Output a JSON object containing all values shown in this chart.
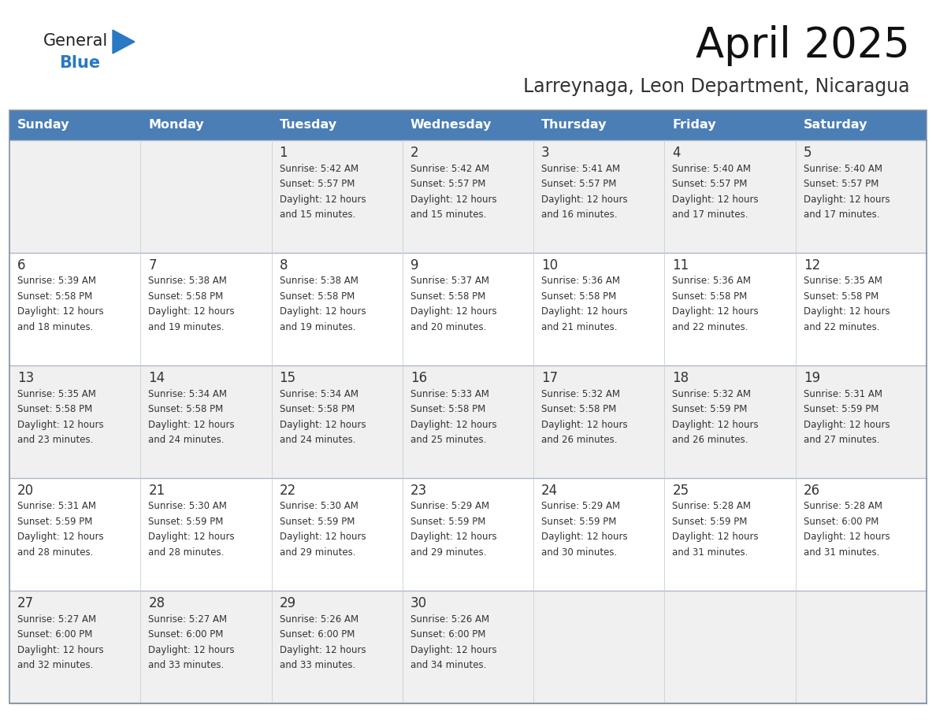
{
  "title": "April 2025",
  "subtitle": "Larreynaga, Leon Department, Nicaragua",
  "days_of_week": [
    "Sunday",
    "Monday",
    "Tuesday",
    "Wednesday",
    "Thursday",
    "Friday",
    "Saturday"
  ],
  "header_bg": "#4a7eb5",
  "header_text": "#ffffff",
  "row_bg_light": "#f0f0f0",
  "row_bg_white": "#ffffff",
  "text_color": "#333333",
  "title_color": "#111111",
  "subtitle_color": "#333333",
  "logo_general_color": "#222222",
  "logo_blue_color": "#2979c4",
  "calendar_data": [
    [
      null,
      null,
      {
        "day": 1,
        "sunrise": "5:42 AM",
        "sunset": "5:57 PM",
        "daylight": "12 hours and 15 minutes."
      },
      {
        "day": 2,
        "sunrise": "5:42 AM",
        "sunset": "5:57 PM",
        "daylight": "12 hours and 15 minutes."
      },
      {
        "day": 3,
        "sunrise": "5:41 AM",
        "sunset": "5:57 PM",
        "daylight": "12 hours and 16 minutes."
      },
      {
        "day": 4,
        "sunrise": "5:40 AM",
        "sunset": "5:57 PM",
        "daylight": "12 hours and 17 minutes."
      },
      {
        "day": 5,
        "sunrise": "5:40 AM",
        "sunset": "5:57 PM",
        "daylight": "12 hours and 17 minutes."
      }
    ],
    [
      {
        "day": 6,
        "sunrise": "5:39 AM",
        "sunset": "5:58 PM",
        "daylight": "12 hours and 18 minutes."
      },
      {
        "day": 7,
        "sunrise": "5:38 AM",
        "sunset": "5:58 PM",
        "daylight": "12 hours and 19 minutes."
      },
      {
        "day": 8,
        "sunrise": "5:38 AM",
        "sunset": "5:58 PM",
        "daylight": "12 hours and 19 minutes."
      },
      {
        "day": 9,
        "sunrise": "5:37 AM",
        "sunset": "5:58 PM",
        "daylight": "12 hours and 20 minutes."
      },
      {
        "day": 10,
        "sunrise": "5:36 AM",
        "sunset": "5:58 PM",
        "daylight": "12 hours and 21 minutes."
      },
      {
        "day": 11,
        "sunrise": "5:36 AM",
        "sunset": "5:58 PM",
        "daylight": "12 hours and 22 minutes."
      },
      {
        "day": 12,
        "sunrise": "5:35 AM",
        "sunset": "5:58 PM",
        "daylight": "12 hours and 22 minutes."
      }
    ],
    [
      {
        "day": 13,
        "sunrise": "5:35 AM",
        "sunset": "5:58 PM",
        "daylight": "12 hours and 23 minutes."
      },
      {
        "day": 14,
        "sunrise": "5:34 AM",
        "sunset": "5:58 PM",
        "daylight": "12 hours and 24 minutes."
      },
      {
        "day": 15,
        "sunrise": "5:34 AM",
        "sunset": "5:58 PM",
        "daylight": "12 hours and 24 minutes."
      },
      {
        "day": 16,
        "sunrise": "5:33 AM",
        "sunset": "5:58 PM",
        "daylight": "12 hours and 25 minutes."
      },
      {
        "day": 17,
        "sunrise": "5:32 AM",
        "sunset": "5:58 PM",
        "daylight": "12 hours and 26 minutes."
      },
      {
        "day": 18,
        "sunrise": "5:32 AM",
        "sunset": "5:59 PM",
        "daylight": "12 hours and 26 minutes."
      },
      {
        "day": 19,
        "sunrise": "5:31 AM",
        "sunset": "5:59 PM",
        "daylight": "12 hours and 27 minutes."
      }
    ],
    [
      {
        "day": 20,
        "sunrise": "5:31 AM",
        "sunset": "5:59 PM",
        "daylight": "12 hours and 28 minutes."
      },
      {
        "day": 21,
        "sunrise": "5:30 AM",
        "sunset": "5:59 PM",
        "daylight": "12 hours and 28 minutes."
      },
      {
        "day": 22,
        "sunrise": "5:30 AM",
        "sunset": "5:59 PM",
        "daylight": "12 hours and 29 minutes."
      },
      {
        "day": 23,
        "sunrise": "5:29 AM",
        "sunset": "5:59 PM",
        "daylight": "12 hours and 29 minutes."
      },
      {
        "day": 24,
        "sunrise": "5:29 AM",
        "sunset": "5:59 PM",
        "daylight": "12 hours and 30 minutes."
      },
      {
        "day": 25,
        "sunrise": "5:28 AM",
        "sunset": "5:59 PM",
        "daylight": "12 hours and 31 minutes."
      },
      {
        "day": 26,
        "sunrise": "5:28 AM",
        "sunset": "6:00 PM",
        "daylight": "12 hours and 31 minutes."
      }
    ],
    [
      {
        "day": 27,
        "sunrise": "5:27 AM",
        "sunset": "6:00 PM",
        "daylight": "12 hours and 32 minutes."
      },
      {
        "day": 28,
        "sunrise": "5:27 AM",
        "sunset": "6:00 PM",
        "daylight": "12 hours and 33 minutes."
      },
      {
        "day": 29,
        "sunrise": "5:26 AM",
        "sunset": "6:00 PM",
        "daylight": "12 hours and 33 minutes."
      },
      {
        "day": 30,
        "sunrise": "5:26 AM",
        "sunset": "6:00 PM",
        "daylight": "12 hours and 34 minutes."
      },
      null,
      null,
      null
    ]
  ]
}
